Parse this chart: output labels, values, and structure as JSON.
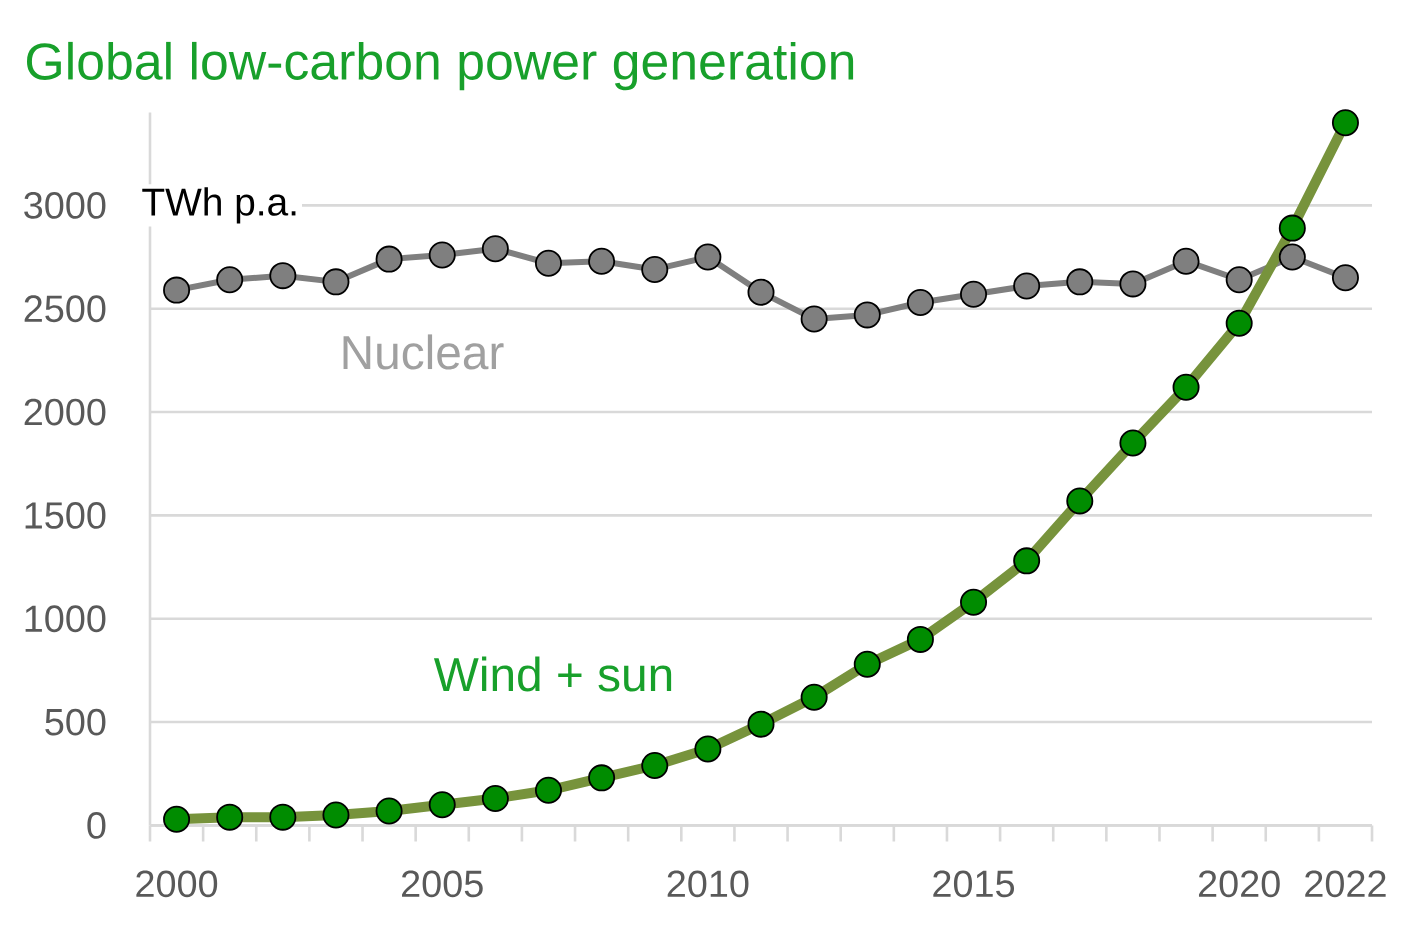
{
  "chart_data": {
    "type": "line",
    "title": "Global low-carbon power generation",
    "ylabel": "TWh p.a.",
    "categories": [
      "2000",
      null,
      null,
      null,
      null,
      "2005",
      null,
      null,
      null,
      null,
      "2010",
      null,
      null,
      null,
      null,
      "2015",
      null,
      null,
      null,
      null,
      "2020",
      null,
      "2022"
    ],
    "series": [
      {
        "name": "Nuclear",
        "color": "#7f7f7f",
        "values": [
          2590,
          2640,
          2660,
          2630,
          2740,
          2760,
          2790,
          2720,
          2730,
          2690,
          2750,
          2580,
          2450,
          2470,
          2530,
          2570,
          2610,
          2630,
          2620,
          2730,
          2640,
          2750,
          2650
        ]
      },
      {
        "name": "Wind + sun",
        "color": "#77933c",
        "values": [
          30,
          40,
          40,
          50,
          70,
          100,
          130,
          170,
          230,
          290,
          370,
          490,
          620,
          780,
          900,
          1080,
          1280,
          1570,
          1850,
          2120,
          2430,
          2890,
          3400
        ]
      }
    ],
    "ylim": [
      0,
      3450
    ],
    "yticks": [
      0,
      500,
      1000,
      1500,
      2000,
      2500,
      3000
    ],
    "grid": "y",
    "marker": "circle",
    "line_style": "solid"
  }
}
